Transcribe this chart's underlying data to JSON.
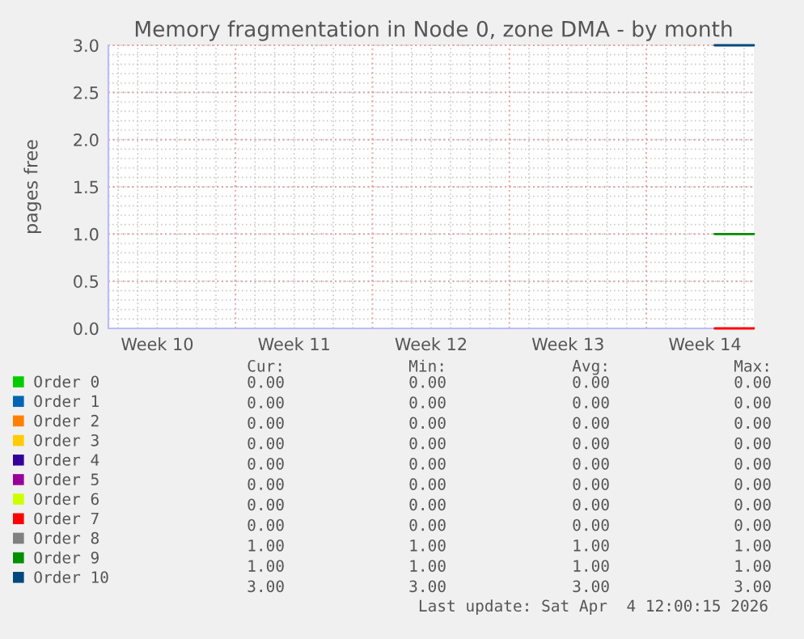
{
  "chart_data": {
    "type": "line",
    "title": "Memory fragmentation in Node 0, zone DMA - by month",
    "ylabel": "pages free",
    "xlim": [
      "2026-03-02T12:00",
      "2026-04-04T12:00"
    ],
    "xticks": [
      {
        "value": "2026-03-05",
        "label": "Week 10"
      },
      {
        "value": "2026-03-12",
        "label": "Week 11"
      },
      {
        "value": "2026-03-19",
        "label": "Week 12"
      },
      {
        "value": "2026-03-26",
        "label": "Week 13"
      },
      {
        "value": "2026-04-02",
        "label": "Week 14"
      }
    ],
    "ylim": [
      0,
      3.0
    ],
    "yticks": [
      {
        "value": 0,
        "label": "0.0"
      },
      {
        "value": 0.5,
        "label": "0.5"
      },
      {
        "value": 1.0,
        "label": "1.0"
      },
      {
        "value": 1.5,
        "label": "1.5"
      },
      {
        "value": 2.0,
        "label": "2.0"
      },
      {
        "value": 2.5,
        "label": "2.5"
      },
      {
        "value": 3.0,
        "label": "3.0"
      }
    ],
    "grid": true,
    "legend": "bottom",
    "x": [
      "2026-04-02T12:00",
      "2026-04-04T12:00"
    ],
    "series": [
      {
        "name": "Order 0",
        "color": "#00cc00",
        "values": [
          null,
          null
        ]
      },
      {
        "name": "Order 1",
        "color": "#0066b3",
        "values": [
          null,
          null
        ]
      },
      {
        "name": "Order 2",
        "color": "#ff8000",
        "values": [
          null,
          null
        ]
      },
      {
        "name": "Order 3",
        "color": "#ffcc00",
        "values": [
          null,
          null
        ]
      },
      {
        "name": "Order 4",
        "color": "#330099",
        "values": [
          null,
          null
        ]
      },
      {
        "name": "Order 5",
        "color": "#990099",
        "values": [
          null,
          null
        ]
      },
      {
        "name": "Order 6",
        "color": "#ccff00",
        "values": [
          null,
          null
        ]
      },
      {
        "name": "Order 7",
        "color": "#ff0000",
        "values": [
          0,
          0
        ]
      },
      {
        "name": "Order 8",
        "color": "#808080",
        "values": [
          null,
          null
        ]
      },
      {
        "name": "Order 9",
        "color": "#008f00",
        "values": [
          1,
          1
        ]
      },
      {
        "name": "Order 10",
        "color": "#00487d",
        "values": [
          3,
          3
        ]
      }
    ],
    "annotations": [
      "Cur:",
      "Min:",
      "Avg:",
      "Max:",
      "0.00",
      "0.00",
      "0.00",
      "0.00",
      "0.00",
      "0.00",
      "0.00",
      "0.00",
      "0.00",
      "0.00",
      "0.00",
      "0.00",
      "0.00",
      "0.00",
      "0.00",
      "0.00",
      "0.00",
      "0.00",
      "0.00",
      "0.00",
      "0.00",
      "0.00",
      "0.00",
      "0.00",
      "0.00",
      "0.00",
      "0.00",
      "0.00",
      "0.00",
      "0.00",
      "0.00",
      "0.00",
      "1.00",
      "1.00",
      "1.00",
      "1.00",
      "1.00",
      "1.00",
      "1.00",
      "1.00",
      "3.00",
      "3.00",
      "3.00",
      "3.00",
      "Last update: Sat Apr  4 12:00:15 2026"
    ]
  }
}
